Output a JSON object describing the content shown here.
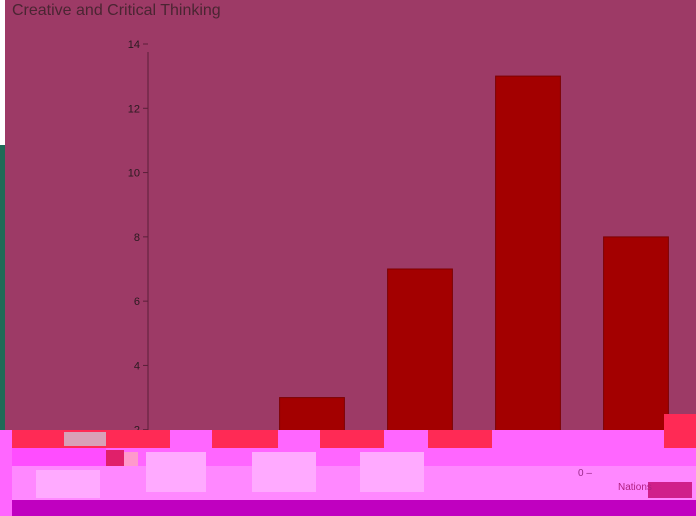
{
  "chart_data": {
    "type": "bar",
    "title": "Creative and Critical Thinking",
    "categories": [
      "",
      "",
      "",
      "",
      ""
    ],
    "values": [
      0,
      3,
      7,
      13,
      8
    ],
    "ylim": [
      0,
      14
    ],
    "yticks": [
      "2",
      "4",
      "6",
      "8",
      "10",
      "12",
      "14"
    ],
    "grid": false,
    "colors": {
      "bar": "#a30000",
      "panel": "#9d3a66"
    }
  },
  "axis": {
    "zero_label": "0 –",
    "x_axis_label": "Nations"
  }
}
